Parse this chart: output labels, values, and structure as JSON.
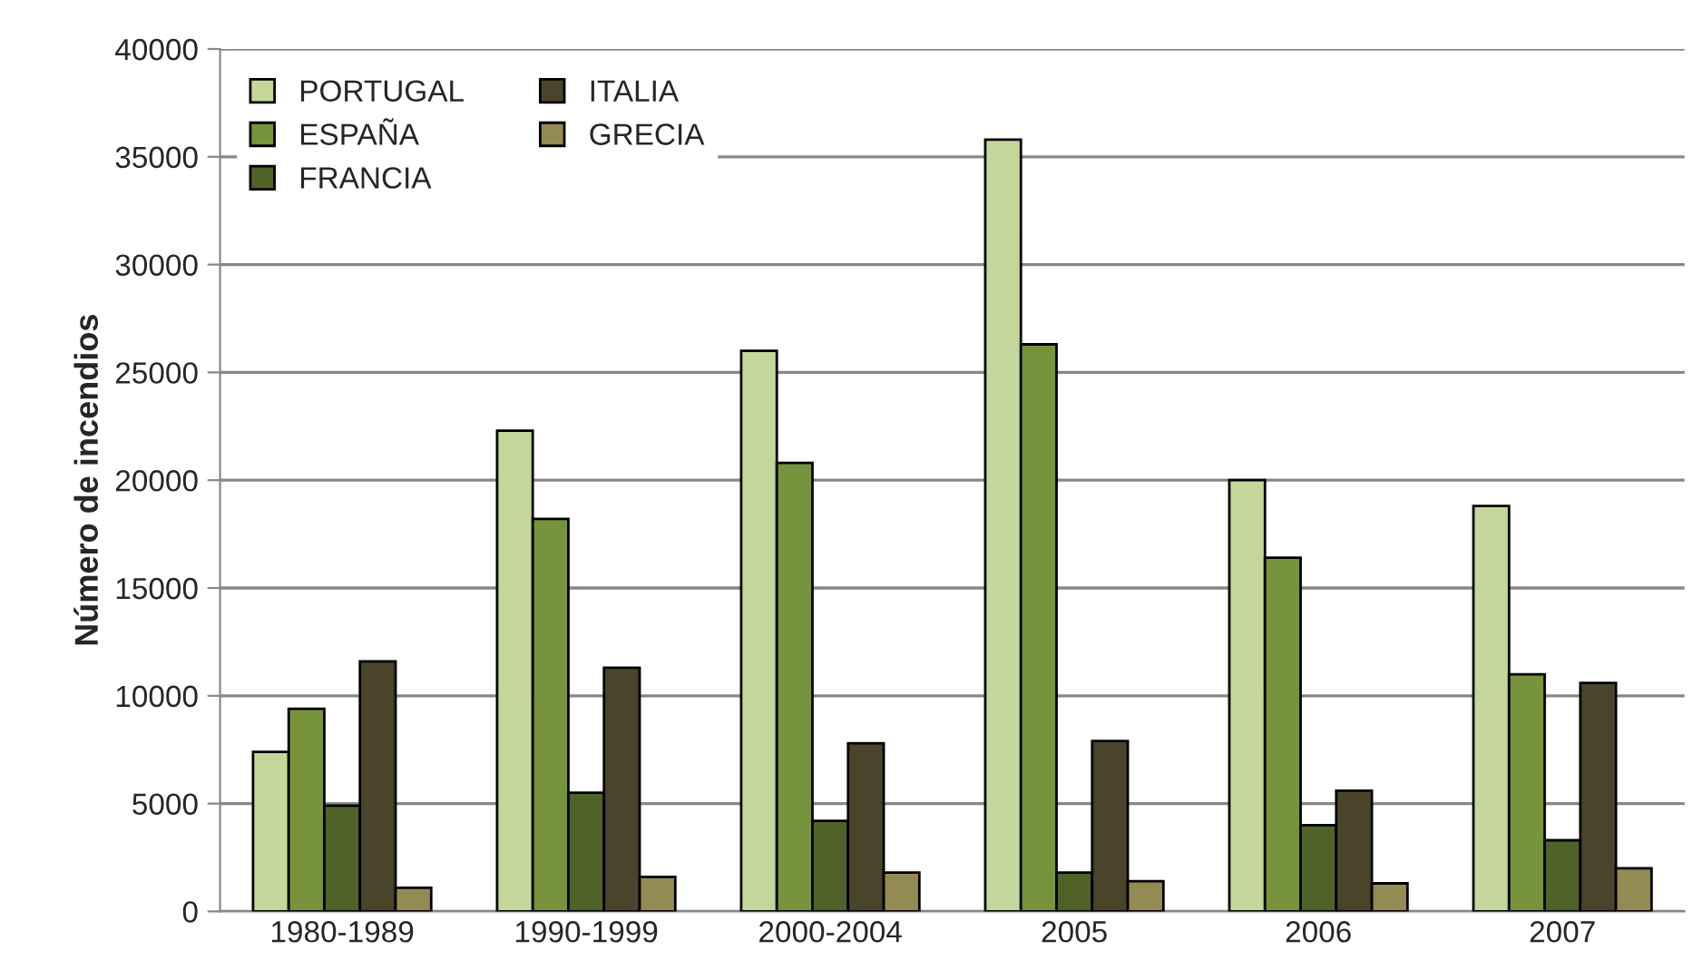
{
  "chart_data": {
    "type": "bar",
    "ylabel": "Número de incendios",
    "categories": [
      "1980-1989",
      "1990-1999",
      "2000-2004",
      "2005",
      "2006",
      "2007"
    ],
    "series": [
      {
        "name": "PORTUGAL",
        "color": "#c4d79b",
        "values": [
          7400,
          22300,
          26000,
          35800,
          20000,
          18800
        ]
      },
      {
        "name": "ESPAÑA",
        "color": "#77933c",
        "values": [
          9400,
          18200,
          20800,
          26300,
          16400,
          11000
        ]
      },
      {
        "name": "FRANCIA",
        "color": "#4f6228",
        "values": [
          4900,
          5500,
          4200,
          1800,
          4000,
          3300
        ]
      },
      {
        "name": "ITALIA",
        "color": "#4a452a",
        "values": [
          11600,
          11300,
          7800,
          7900,
          5600,
          10600
        ]
      },
      {
        "name": "GRECIA",
        "color": "#948a54",
        "values": [
          1100,
          1600,
          1800,
          1400,
          1300,
          2000
        ]
      }
    ],
    "ylim": [
      0,
      40000
    ],
    "yticks": [
      0,
      5000,
      10000,
      15000,
      20000,
      25000,
      30000,
      35000,
      40000
    ],
    "grid": "y",
    "legend": "top left"
  }
}
